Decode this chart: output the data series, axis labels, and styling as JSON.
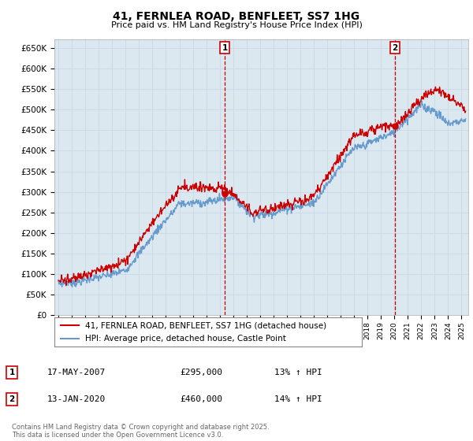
{
  "title": "41, FERNLEA ROAD, BENFLEET, SS7 1HG",
  "subtitle": "Price paid vs. HM Land Registry's House Price Index (HPI)",
  "ylim": [
    0,
    670000
  ],
  "yticks": [
    0,
    50000,
    100000,
    150000,
    200000,
    250000,
    300000,
    350000,
    400000,
    450000,
    500000,
    550000,
    600000,
    650000
  ],
  "xlim_start": 1994.7,
  "xlim_end": 2025.5,
  "grid_color": "#c8d8e8",
  "background_color": "#dce8f0",
  "line1_color": "#cc0000",
  "line2_color": "#6699cc",
  "marker1_x": 2007.37,
  "marker1_y": 295000,
  "marker2_x": 2020.04,
  "marker2_y": 460000,
  "legend_line1": "41, FERNLEA ROAD, BENFLEET, SS7 1HG (detached house)",
  "legend_line2": "HPI: Average price, detached house, Castle Point",
  "footer": "Contains HM Land Registry data © Crown copyright and database right 2025.\nThis data is licensed under the Open Government Licence v3.0.",
  "table_rows": [
    {
      "num": "1",
      "date": "17-MAY-2007",
      "price": "£295,000",
      "hpi": "13% ↑ HPI"
    },
    {
      "num": "2",
      "date": "13-JAN-2020",
      "price": "£460,000",
      "hpi": "14% ↑ HPI"
    }
  ]
}
